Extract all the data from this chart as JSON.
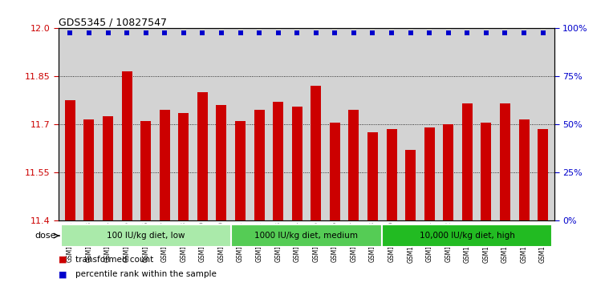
{
  "title": "GDS5345 / 10827547",
  "samples": [
    "GSM1502412",
    "GSM1502413",
    "GSM1502414",
    "GSM1502415",
    "GSM1502416",
    "GSM1502417",
    "GSM1502418",
    "GSM1502419",
    "GSM1502420",
    "GSM1502421",
    "GSM1502422",
    "GSM1502423",
    "GSM1502424",
    "GSM1502425",
    "GSM1502426",
    "GSM1502427",
    "GSM1502428",
    "GSM1502429",
    "GSM1502430",
    "GSM1502431",
    "GSM1502432",
    "GSM1502433",
    "GSM1502434",
    "GSM1502435",
    "GSM1502436",
    "GSM1502437"
  ],
  "values": [
    11.775,
    11.715,
    11.725,
    11.865,
    11.71,
    11.745,
    11.735,
    11.8,
    11.76,
    11.71,
    11.745,
    11.77,
    11.755,
    11.82,
    11.705,
    11.745,
    11.675,
    11.685,
    11.62,
    11.69,
    11.7,
    11.765,
    11.705,
    11.765,
    11.715,
    11.685
  ],
  "ylim": [
    11.4,
    12.0
  ],
  "yticks_left": [
    11.4,
    11.55,
    11.7,
    11.85,
    12.0
  ],
  "yticks_right": [
    0,
    25,
    50,
    75,
    100
  ],
  "bar_color": "#cc0000",
  "dot_color": "#0000cc",
  "bg_color": "#d3d3d3",
  "groups": [
    {
      "label": "100 IU/kg diet, low",
      "start": 0,
      "end": 9,
      "color": "#aaeaaa"
    },
    {
      "label": "1000 IU/kg diet, medium",
      "start": 9,
      "end": 17,
      "color": "#55cc55"
    },
    {
      "label": "10,000 IU/kg diet, high",
      "start": 17,
      "end": 26,
      "color": "#22bb22"
    }
  ],
  "legend_items": [
    {
      "label": "transformed count",
      "color": "#cc0000"
    },
    {
      "label": "percentile rank within the sample",
      "color": "#0000cc"
    }
  ],
  "dose_label": "dose"
}
